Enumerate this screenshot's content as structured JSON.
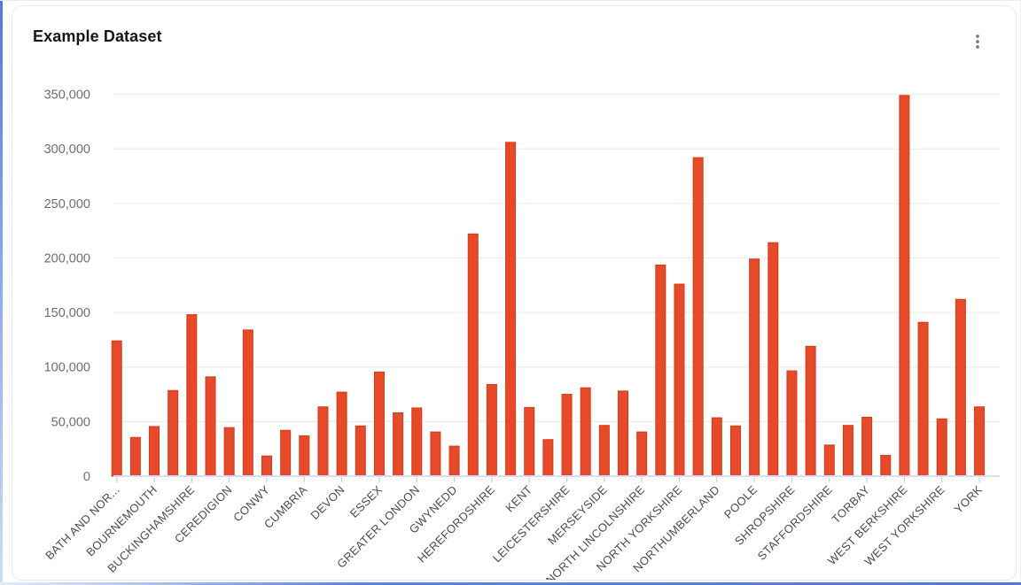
{
  "header": {
    "title": "Example Dataset",
    "menu_icon": "kebab-menu"
  },
  "chart_data": {
    "type": "bar",
    "title": "Example Dataset",
    "xlabel": "",
    "ylabel": "",
    "ylim": [
      0,
      350000
    ],
    "ytick_interval": 50000,
    "ytick_labels": [
      "0",
      "50,000",
      "100,000",
      "150,000",
      "200,000",
      "250,000",
      "300,000",
      "350,000"
    ],
    "grid": true,
    "legend": false,
    "x_label_rotation": -45,
    "x_label_every": 2,
    "bar_color": "#e64a2b",
    "bar_border_color": "#d13c15",
    "axis_line_color": "#d9ddf0",
    "grid_color": "#ededee",
    "categories": [
      "BATH AND NOR...",
      "",
      "BOURNEMOUTH",
      "",
      "BUCKINGHAMSHIRE",
      "",
      "CEREDIGION",
      "",
      "CONWY",
      "",
      "CUMBRIA",
      "",
      "DEVON",
      "",
      "ESSEX",
      "",
      "GREATER LONDON",
      "",
      "GWYNEDD",
      "",
      "HEREFORDSHIRE",
      "",
      "KENT",
      "",
      "LEICESTERSHIRE",
      "",
      "MERSEYSIDE",
      "",
      "NORTH LINCOLNSHIRE",
      "",
      "NORTH YORKSHIRE",
      "",
      "NORTHUMBERLAND",
      "",
      "POOLE",
      "",
      "SHROPSHIRE",
      "",
      "STAFFORDSHIRE",
      "",
      "TORBAY",
      "",
      "WEST BERKSHIRE",
      "",
      "WEST YORKSHIRE",
      "",
      "YORK"
    ],
    "values": [
      124000,
      35500,
      45500,
      78500,
      148000,
      91000,
      44500,
      134000,
      18500,
      42000,
      37000,
      63500,
      77000,
      46000,
      95500,
      58000,
      62500,
      40500,
      27500,
      222000,
      84000,
      306000,
      63000,
      33500,
      75000,
      81000,
      46500,
      78000,
      40500,
      193500,
      176000,
      292000,
      53500,
      46000,
      199000,
      214000,
      96500,
      119000,
      28500,
      46500,
      54000,
      19000,
      349000,
      141000,
      52500,
      162000,
      63500
    ]
  }
}
